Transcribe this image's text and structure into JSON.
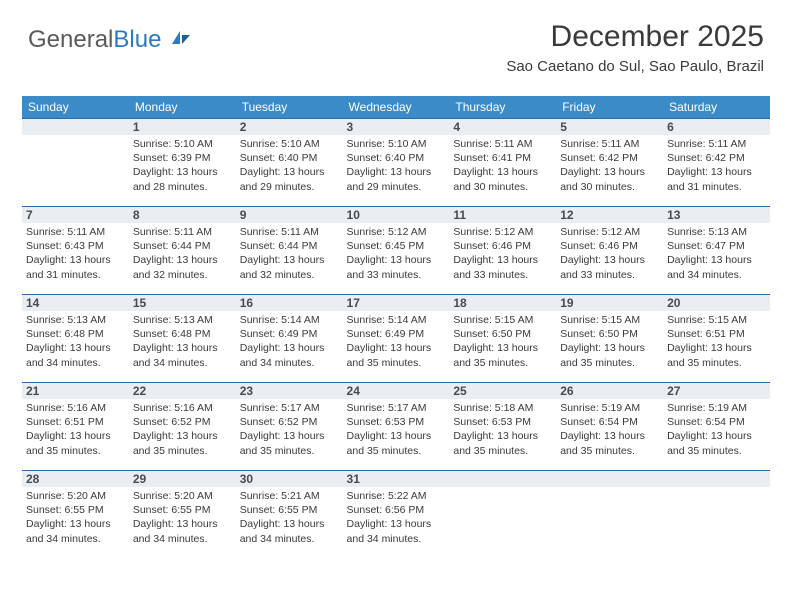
{
  "logo": {
    "text1": "General",
    "text2": "Blue"
  },
  "title": "December 2025",
  "subtitle": "Sao Caetano do Sul, Sao Paulo, Brazil",
  "colors": {
    "header_bg": "#3b8bc8",
    "header_text": "#ffffff",
    "daynum_bg": "#e9eef2",
    "daynum_border": "#2a6aa0",
    "body_text": "#3a3a3a",
    "logo_gray": "#5a5a5a",
    "logo_blue": "#2a7bbf"
  },
  "typography": {
    "title_fontsize": 30,
    "subtitle_fontsize": 15,
    "header_fontsize": 12,
    "daynum_fontsize": 12,
    "cell_fontsize": 10.5
  },
  "weekdays": [
    "Sunday",
    "Monday",
    "Tuesday",
    "Wednesday",
    "Thursday",
    "Friday",
    "Saturday"
  ],
  "weeks": [
    [
      null,
      {
        "n": "1",
        "sr": "Sunrise: 5:10 AM",
        "ss": "Sunset: 6:39 PM",
        "d1": "Daylight: 13 hours",
        "d2": "and 28 minutes."
      },
      {
        "n": "2",
        "sr": "Sunrise: 5:10 AM",
        "ss": "Sunset: 6:40 PM",
        "d1": "Daylight: 13 hours",
        "d2": "and 29 minutes."
      },
      {
        "n": "3",
        "sr": "Sunrise: 5:10 AM",
        "ss": "Sunset: 6:40 PM",
        "d1": "Daylight: 13 hours",
        "d2": "and 29 minutes."
      },
      {
        "n": "4",
        "sr": "Sunrise: 5:11 AM",
        "ss": "Sunset: 6:41 PM",
        "d1": "Daylight: 13 hours",
        "d2": "and 30 minutes."
      },
      {
        "n": "5",
        "sr": "Sunrise: 5:11 AM",
        "ss": "Sunset: 6:42 PM",
        "d1": "Daylight: 13 hours",
        "d2": "and 30 minutes."
      },
      {
        "n": "6",
        "sr": "Sunrise: 5:11 AM",
        "ss": "Sunset: 6:42 PM",
        "d1": "Daylight: 13 hours",
        "d2": "and 31 minutes."
      }
    ],
    [
      {
        "n": "7",
        "sr": "Sunrise: 5:11 AM",
        "ss": "Sunset: 6:43 PM",
        "d1": "Daylight: 13 hours",
        "d2": "and 31 minutes."
      },
      {
        "n": "8",
        "sr": "Sunrise: 5:11 AM",
        "ss": "Sunset: 6:44 PM",
        "d1": "Daylight: 13 hours",
        "d2": "and 32 minutes."
      },
      {
        "n": "9",
        "sr": "Sunrise: 5:11 AM",
        "ss": "Sunset: 6:44 PM",
        "d1": "Daylight: 13 hours",
        "d2": "and 32 minutes."
      },
      {
        "n": "10",
        "sr": "Sunrise: 5:12 AM",
        "ss": "Sunset: 6:45 PM",
        "d1": "Daylight: 13 hours",
        "d2": "and 33 minutes."
      },
      {
        "n": "11",
        "sr": "Sunrise: 5:12 AM",
        "ss": "Sunset: 6:46 PM",
        "d1": "Daylight: 13 hours",
        "d2": "and 33 minutes."
      },
      {
        "n": "12",
        "sr": "Sunrise: 5:12 AM",
        "ss": "Sunset: 6:46 PM",
        "d1": "Daylight: 13 hours",
        "d2": "and 33 minutes."
      },
      {
        "n": "13",
        "sr": "Sunrise: 5:13 AM",
        "ss": "Sunset: 6:47 PM",
        "d1": "Daylight: 13 hours",
        "d2": "and 34 minutes."
      }
    ],
    [
      {
        "n": "14",
        "sr": "Sunrise: 5:13 AM",
        "ss": "Sunset: 6:48 PM",
        "d1": "Daylight: 13 hours",
        "d2": "and 34 minutes."
      },
      {
        "n": "15",
        "sr": "Sunrise: 5:13 AM",
        "ss": "Sunset: 6:48 PM",
        "d1": "Daylight: 13 hours",
        "d2": "and 34 minutes."
      },
      {
        "n": "16",
        "sr": "Sunrise: 5:14 AM",
        "ss": "Sunset: 6:49 PM",
        "d1": "Daylight: 13 hours",
        "d2": "and 34 minutes."
      },
      {
        "n": "17",
        "sr": "Sunrise: 5:14 AM",
        "ss": "Sunset: 6:49 PM",
        "d1": "Daylight: 13 hours",
        "d2": "and 35 minutes."
      },
      {
        "n": "18",
        "sr": "Sunrise: 5:15 AM",
        "ss": "Sunset: 6:50 PM",
        "d1": "Daylight: 13 hours",
        "d2": "and 35 minutes."
      },
      {
        "n": "19",
        "sr": "Sunrise: 5:15 AM",
        "ss": "Sunset: 6:50 PM",
        "d1": "Daylight: 13 hours",
        "d2": "and 35 minutes."
      },
      {
        "n": "20",
        "sr": "Sunrise: 5:15 AM",
        "ss": "Sunset: 6:51 PM",
        "d1": "Daylight: 13 hours",
        "d2": "and 35 minutes."
      }
    ],
    [
      {
        "n": "21",
        "sr": "Sunrise: 5:16 AM",
        "ss": "Sunset: 6:51 PM",
        "d1": "Daylight: 13 hours",
        "d2": "and 35 minutes."
      },
      {
        "n": "22",
        "sr": "Sunrise: 5:16 AM",
        "ss": "Sunset: 6:52 PM",
        "d1": "Daylight: 13 hours",
        "d2": "and 35 minutes."
      },
      {
        "n": "23",
        "sr": "Sunrise: 5:17 AM",
        "ss": "Sunset: 6:52 PM",
        "d1": "Daylight: 13 hours",
        "d2": "and 35 minutes."
      },
      {
        "n": "24",
        "sr": "Sunrise: 5:17 AM",
        "ss": "Sunset: 6:53 PM",
        "d1": "Daylight: 13 hours",
        "d2": "and 35 minutes."
      },
      {
        "n": "25",
        "sr": "Sunrise: 5:18 AM",
        "ss": "Sunset: 6:53 PM",
        "d1": "Daylight: 13 hours",
        "d2": "and 35 minutes."
      },
      {
        "n": "26",
        "sr": "Sunrise: 5:19 AM",
        "ss": "Sunset: 6:54 PM",
        "d1": "Daylight: 13 hours",
        "d2": "and 35 minutes."
      },
      {
        "n": "27",
        "sr": "Sunrise: 5:19 AM",
        "ss": "Sunset: 6:54 PM",
        "d1": "Daylight: 13 hours",
        "d2": "and 35 minutes."
      }
    ],
    [
      {
        "n": "28",
        "sr": "Sunrise: 5:20 AM",
        "ss": "Sunset: 6:55 PM",
        "d1": "Daylight: 13 hours",
        "d2": "and 34 minutes."
      },
      {
        "n": "29",
        "sr": "Sunrise: 5:20 AM",
        "ss": "Sunset: 6:55 PM",
        "d1": "Daylight: 13 hours",
        "d2": "and 34 minutes."
      },
      {
        "n": "30",
        "sr": "Sunrise: 5:21 AM",
        "ss": "Sunset: 6:55 PM",
        "d1": "Daylight: 13 hours",
        "d2": "and 34 minutes."
      },
      {
        "n": "31",
        "sr": "Sunrise: 5:22 AM",
        "ss": "Sunset: 6:56 PM",
        "d1": "Daylight: 13 hours",
        "d2": "and 34 minutes."
      },
      null,
      null,
      null
    ]
  ]
}
